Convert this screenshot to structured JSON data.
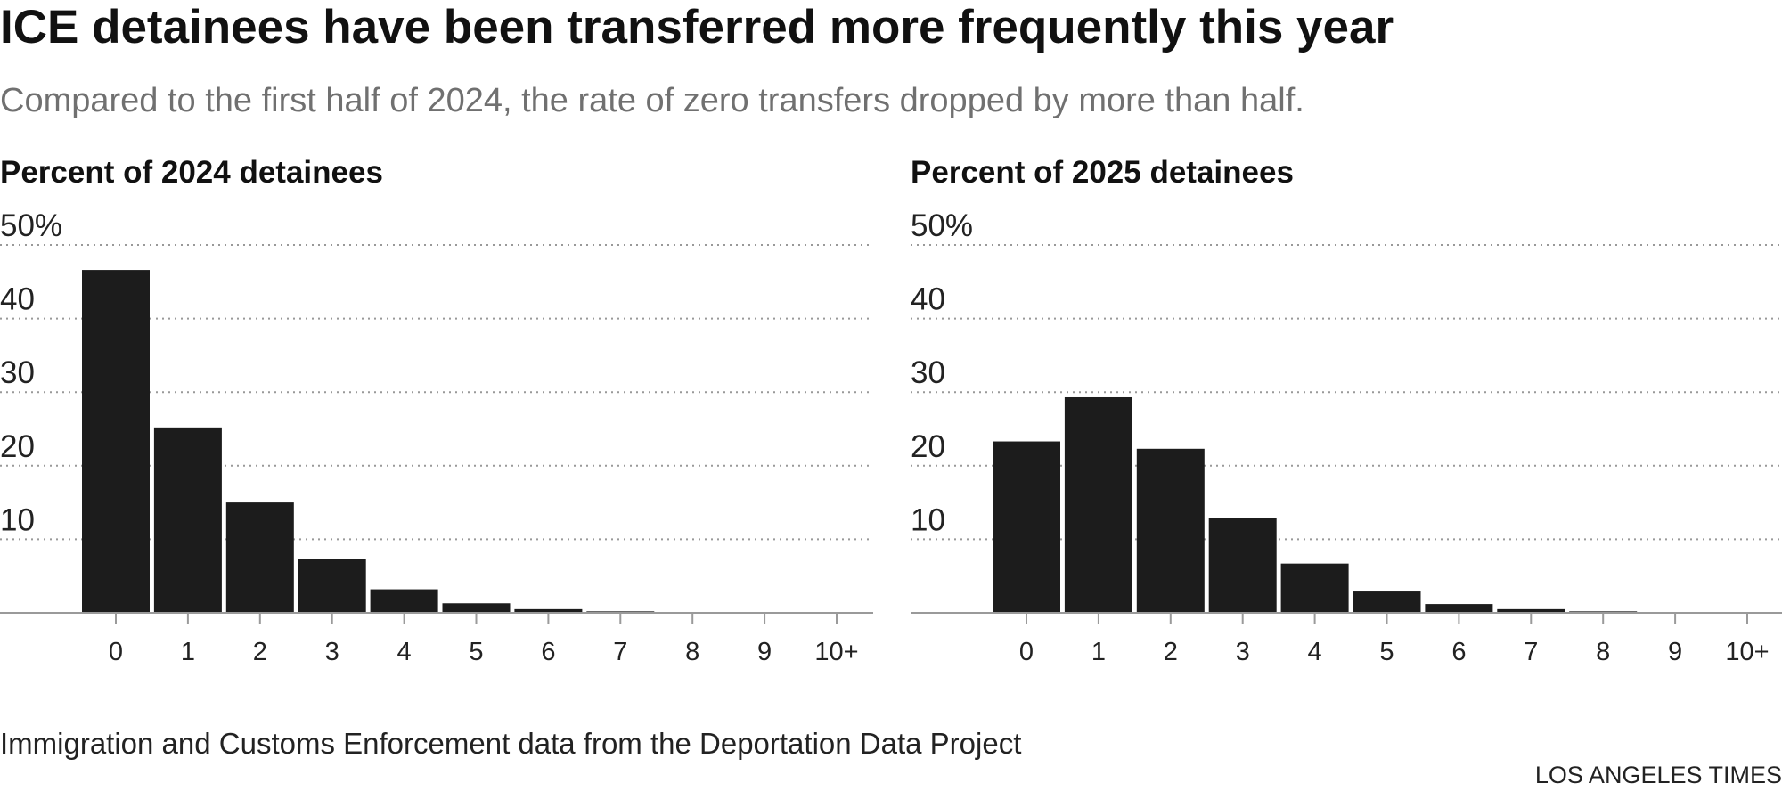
{
  "title": "ICE detainees have been transferred more frequently this year",
  "subtitle": "Compared to the first half of 2024, the rate of zero transfers dropped by more than half.",
  "source": "Immigration and Customs Enforcement data from the Deportation Data Project",
  "credit": "LOS ANGELES TIMES",
  "colors": {
    "bar": "#1c1c1c",
    "grid": "#999999",
    "axis": "#9a9a9a"
  },
  "chart_data": [
    {
      "type": "bar",
      "title": "Percent of 2024 detainees",
      "categories": [
        "0",
        "1",
        "2",
        "3",
        "4",
        "5",
        "6",
        "7",
        "8",
        "9",
        "10+"
      ],
      "values": [
        46.6,
        25.2,
        15.0,
        7.3,
        3.2,
        1.3,
        0.5,
        0.2,
        0.1,
        0.05,
        0.05
      ],
      "yticks": [
        "50%",
        "40",
        "30",
        "20",
        "10"
      ],
      "ytick_values": [
        50,
        40,
        30,
        20,
        10
      ],
      "ylim": [
        0,
        50
      ],
      "xlabel": "",
      "ylabel": "",
      "grid": true
    },
    {
      "type": "bar",
      "title": "Percent of 2025 detainees",
      "categories": [
        "0",
        "1",
        "2",
        "3",
        "4",
        "5",
        "6",
        "7",
        "8",
        "9",
        "10+"
      ],
      "values": [
        23.3,
        29.3,
        22.3,
        12.9,
        6.7,
        2.9,
        1.2,
        0.5,
        0.2,
        0.1,
        0.05
      ],
      "yticks": [
        "50%",
        "40",
        "30",
        "20",
        "10"
      ],
      "ytick_values": [
        50,
        40,
        30,
        20,
        10
      ],
      "ylim": [
        0,
        50
      ],
      "xlabel": "",
      "ylabel": "",
      "grid": true
    }
  ]
}
